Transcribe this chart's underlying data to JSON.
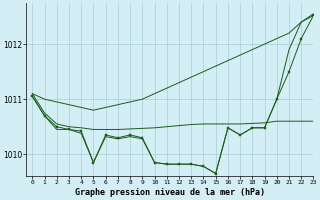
{
  "background_color": "#d4eef5",
  "grid_color": "#aaccd8",
  "line_color": "#1a5c1a",
  "title": "Graphe pression niveau de la mer (hPa)",
  "xlim": [
    -0.5,
    23
  ],
  "ylim": [
    1009.6,
    1012.75
  ],
  "yticks": [
    1010,
    1011,
    1012
  ],
  "xticks": [
    0,
    1,
    2,
    3,
    4,
    5,
    6,
    7,
    8,
    9,
    10,
    11,
    12,
    13,
    14,
    15,
    16,
    17,
    18,
    19,
    20,
    21,
    22,
    23
  ],
  "series_flat": [
    1011.1,
    1010.75,
    1010.55,
    1010.5,
    1010.48,
    1010.45,
    1010.45,
    1010.45,
    1010.46,
    1010.47,
    1010.48,
    1010.5,
    1010.52,
    1010.54,
    1010.55,
    1010.55,
    1010.55,
    1010.55,
    1010.56,
    1010.57,
    1010.6,
    1010.6,
    1010.6,
    1010.6
  ],
  "series_diagonal": [
    1011.1,
    1011.0,
    1010.95,
    1010.9,
    1010.85,
    1010.8,
    1010.85,
    1010.9,
    1010.95,
    1011.0,
    1011.1,
    1011.2,
    1011.3,
    1011.4,
    1011.5,
    1011.6,
    1011.7,
    1011.8,
    1011.9,
    1012.0,
    1012.1,
    1012.2,
    1012.4,
    1012.55
  ],
  "series_dip_main": [
    1011.05,
    1010.7,
    1010.5,
    1010.45,
    1010.42,
    1009.85,
    1010.35,
    1010.3,
    1010.35,
    1010.3,
    1009.85,
    1009.82,
    1009.82,
    1009.82,
    1009.78,
    1009.65,
    1010.48,
    1010.35,
    1010.48,
    1010.48,
    1011.0,
    1011.5,
    1012.1,
    1012.52
  ],
  "series_dip_smooth": [
    1011.05,
    1010.7,
    1010.45,
    1010.45,
    1010.38,
    1009.85,
    1010.32,
    1010.28,
    1010.32,
    1010.28,
    1009.85,
    1009.82,
    1009.82,
    1009.82,
    1009.78,
    1009.65,
    1010.48,
    1010.35,
    1010.48,
    1010.48,
    1011.0,
    1011.9,
    1012.4,
    1012.52
  ]
}
